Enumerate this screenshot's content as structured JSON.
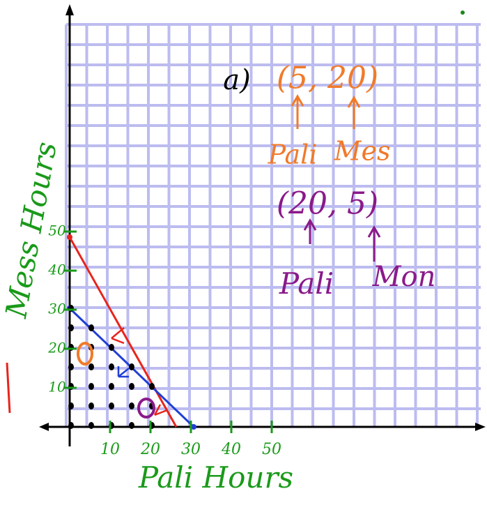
{
  "annotations": {
    "part": "a)",
    "point1": "(5, 20)",
    "point1_x": "Pali",
    "point1_y": "Mes",
    "point2": "(20, 5)",
    "point2_x": "Pali",
    "point2_y": "Mon"
  },
  "axes": {
    "x_label": "Pali Hours",
    "y_label": "Mess Hours",
    "x_ticks": [
      "10",
      "20",
      "30",
      "40",
      "50"
    ],
    "y_ticks": [
      "10",
      "20",
      "30",
      "40",
      "50"
    ]
  }
}
